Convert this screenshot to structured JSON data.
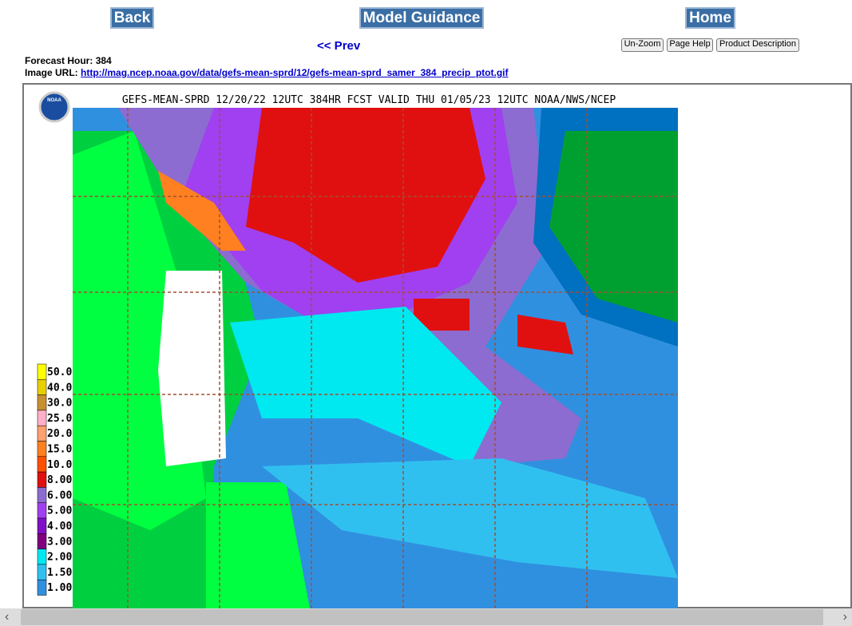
{
  "nav": {
    "back": "Back",
    "model_guidance": "Model Guidance",
    "home": "Home",
    "prev": "<< Prev"
  },
  "tools": {
    "unzoom": "Un-Zoom",
    "page_help": "Page Help",
    "product_description": "Product Description"
  },
  "info": {
    "forecast_hour_label": "Forecast Hour:",
    "forecast_hour": "384",
    "image_url_label": "Image URL:",
    "image_url": "http://mag.ncep.noaa.gov/data/gefs-mean-sprd/12/gefs-mean-sprd_samer_384_precip_ptot.gif"
  },
  "map": {
    "title": "GEFS-MEAN-SPRD 12/20/22 12UTC 384HR FCST VALID THU 01/05/23 12UTC NOAA/NWS/NCEP",
    "logo": "NOAA",
    "legend": [
      {
        "label": "50.0",
        "color": "#ffff00"
      },
      {
        "label": "40.0",
        "color": "#e8d000"
      },
      {
        "label": "30.0",
        "color": "#c89030"
      },
      {
        "label": "25.0",
        "color": "#ffb0c8"
      },
      {
        "label": "20.0",
        "color": "#ffa070"
      },
      {
        "label": "15.0",
        "color": "#ff8020"
      },
      {
        "label": "10.0",
        "color": "#ff5000"
      },
      {
        "label": "8.00",
        "color": "#e01010"
      },
      {
        "label": "6.00",
        "color": "#8c6cd0"
      },
      {
        "label": "5.00",
        "color": "#a040f0"
      },
      {
        "label": "4.00",
        "color": "#8010c8"
      },
      {
        "label": "3.00",
        "color": "#800080"
      },
      {
        "label": "2.00",
        "color": "#00e8f0"
      },
      {
        "label": "1.50",
        "color": "#30c0f0"
      },
      {
        "label": "1.00",
        "color": "#3090e0"
      }
    ]
  }
}
